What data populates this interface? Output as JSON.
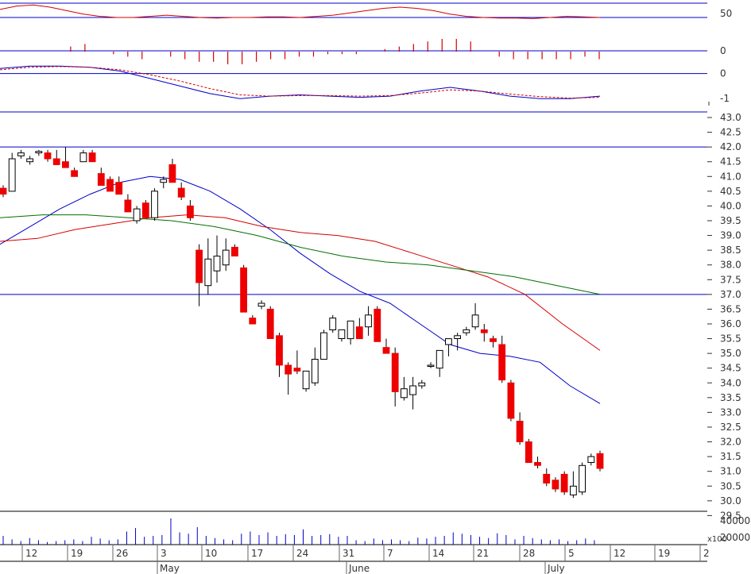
{
  "chart_data": [
    {
      "type": "line",
      "panel": "oscillator-top",
      "y_tick_labels": [
        "50",
        "0"
      ],
      "ylim": [
        0,
        75
      ],
      "reference_lines": [
        75,
        50
      ],
      "series": [
        {
          "color": "#d40000",
          "values": [
            64,
            70,
            72,
            68,
            62,
            56,
            52,
            50,
            50,
            52,
            54,
            52,
            50,
            49,
            50,
            50,
            51,
            51,
            50,
            52,
            54,
            58,
            62,
            66,
            68,
            66,
            62,
            56,
            52,
            50,
            49,
            49,
            48,
            50,
            52,
            51,
            50
          ]
        }
      ]
    },
    {
      "type": "bar",
      "panel": "histogram",
      "y_tick_labels": [
        "0"
      ],
      "ylim": [
        -8,
        8
      ],
      "color": "#d40000",
      "values": [
        0,
        0,
        0,
        0,
        2,
        3,
        0,
        -1,
        -2,
        -3,
        0,
        -2,
        -3,
        -4,
        -4,
        -5,
        -5,
        -4,
        -3,
        -3,
        -2,
        -2,
        -1,
        -1,
        -1,
        0,
        1,
        2,
        3,
        4,
        5,
        5,
        4,
        0,
        -2,
        -3,
        -3,
        -3,
        -3,
        -3,
        -2,
        -3
      ]
    },
    {
      "type": "line",
      "panel": "macd",
      "y_tick_labels": [
        "0",
        "-1"
      ],
      "ylim": [
        -1.5,
        0.4
      ],
      "reference_lines": [
        0
      ],
      "series": [
        {
          "name": "macd",
          "color": "#0000c8",
          "values": [
            0.2,
            0.3,
            0.3,
            0.25,
            0.1,
            -0.2,
            -0.5,
            -0.8,
            -1.0,
            -0.9,
            -0.85,
            -0.9,
            -0.95,
            -0.9,
            -0.7,
            -0.55,
            -0.7,
            -0.9,
            -1.0,
            -1.0,
            -0.9
          ]
        },
        {
          "name": "signal",
          "color": "#d40000",
          "dashed": true,
          "values": [
            0.15,
            0.25,
            0.28,
            0.25,
            0.15,
            -0.05,
            -0.3,
            -0.6,
            -0.85,
            -0.9,
            -0.88,
            -0.88,
            -0.9,
            -0.88,
            -0.78,
            -0.65,
            -0.7,
            -0.82,
            -0.92,
            -0.98,
            -0.95
          ]
        }
      ]
    },
    {
      "type": "candlestick",
      "panel": "price",
      "x_tick_labels": [
        "12",
        "19",
        "26",
        "3",
        "10",
        "17",
        "24",
        "31",
        "7",
        "14",
        "21",
        "28",
        "5",
        "12",
        "19",
        "2"
      ],
      "month_labels": [
        "May",
        "June",
        "July"
      ],
      "y_tick_labels": [
        "43.0",
        "42.5",
        "42.0",
        "41.5",
        "41.0",
        "40.5",
        "40.0",
        "39.5",
        "39.0",
        "38.5",
        "38.0",
        "37.5",
        "37.0",
        "36.5",
        "36.0",
        "35.5",
        "35.0",
        "34.5",
        "34.0",
        "33.5",
        "33.0",
        "32.5",
        "32.0",
        "31.5",
        "31.0",
        "30.5",
        "30.0",
        "29.5"
      ],
      "ylim": [
        29.0,
        43.0
      ],
      "reference_lines": [
        42.0,
        37.0
      ],
      "candles": [
        [
          40.6,
          40.7,
          40.3,
          40.4
        ],
        [
          40.5,
          41.8,
          40.5,
          41.6
        ],
        [
          41.7,
          41.9,
          41.6,
          41.8
        ],
        [
          41.5,
          41.7,
          41.4,
          41.6
        ],
        [
          41.8,
          41.9,
          41.7,
          41.85
        ],
        [
          41.8,
          41.9,
          41.5,
          41.6
        ],
        [
          41.6,
          41.9,
          41.5,
          41.4
        ],
        [
          41.5,
          42.0,
          41.3,
          41.3
        ],
        [
          41.2,
          41.3,
          41.0,
          41.0
        ],
        [
          41.5,
          41.9,
          41.5,
          41.8
        ],
        [
          41.8,
          41.9,
          41.5,
          41.5
        ],
        [
          41.1,
          41.3,
          40.7,
          40.7
        ],
        [
          40.9,
          41.0,
          40.5,
          40.5
        ],
        [
          40.8,
          41.0,
          40.5,
          40.4
        ],
        [
          40.2,
          40.4,
          39.8,
          39.8
        ],
        [
          39.5,
          40.0,
          39.4,
          39.9
        ],
        [
          40.1,
          40.2,
          39.6,
          39.6
        ],
        [
          39.6,
          40.6,
          39.5,
          40.5
        ],
        [
          40.8,
          41.0,
          40.6,
          40.9
        ],
        [
          41.4,
          41.6,
          40.8,
          40.8
        ],
        [
          40.6,
          40.8,
          40.2,
          40.3
        ],
        [
          40.0,
          40.2,
          39.5,
          39.6
        ],
        [
          38.5,
          38.7,
          36.6,
          37.4
        ],
        [
          37.3,
          38.9,
          37.0,
          38.2
        ],
        [
          37.8,
          39.0,
          37.4,
          38.3
        ],
        [
          38.0,
          38.9,
          37.8,
          38.5
        ],
        [
          38.6,
          38.7,
          38.3,
          38.3
        ],
        [
          37.9,
          38.0,
          36.5,
          36.4
        ],
        [
          36.2,
          36.3,
          36.0,
          36.0
        ],
        [
          36.6,
          36.8,
          36.5,
          36.7
        ],
        [
          36.5,
          36.6,
          35.5,
          35.5
        ],
        [
          35.6,
          35.7,
          34.2,
          34.6
        ],
        [
          34.6,
          34.7,
          33.6,
          34.3
        ],
        [
          34.5,
          35.1,
          34.3,
          34.4
        ],
        [
          33.8,
          34.3,
          33.7,
          34.4
        ],
        [
          34.0,
          35.2,
          33.9,
          34.8
        ],
        [
          34.8,
          35.8,
          34.8,
          35.7
        ],
        [
          35.8,
          36.3,
          35.7,
          36.2
        ],
        [
          35.5,
          35.8,
          35.4,
          35.8
        ],
        [
          35.5,
          36.1,
          35.3,
          36.1
        ],
        [
          35.9,
          36.2,
          35.5,
          35.5
        ],
        [
          35.9,
          36.6,
          35.6,
          36.3
        ],
        [
          36.5,
          36.6,
          35.5,
          35.4
        ],
        [
          35.2,
          35.5,
          35.1,
          35.0
        ],
        [
          35.0,
          35.2,
          33.2,
          33.7
        ],
        [
          33.5,
          34.2,
          33.4,
          33.8
        ],
        [
          33.6,
          34.2,
          33.1,
          33.9
        ],
        [
          33.9,
          34.1,
          33.8,
          34.0
        ],
        [
          34.6,
          34.7,
          34.5,
          34.6
        ],
        [
          34.5,
          35.1,
          34.2,
          35.1
        ],
        [
          35.3,
          35.5,
          34.9,
          35.5
        ],
        [
          35.5,
          35.7,
          35.1,
          35.6
        ],
        [
          35.7,
          35.9,
          35.6,
          35.8
        ],
        [
          35.9,
          36.7,
          35.8,
          36.3
        ],
        [
          35.8,
          36.0,
          35.4,
          35.7
        ],
        [
          35.5,
          35.6,
          35.2,
          35.4
        ],
        [
          35.3,
          35.6,
          34.0,
          34.1
        ],
        [
          34.0,
          34.1,
          32.7,
          32.8
        ],
        [
          32.7,
          33.0,
          31.9,
          32.0
        ],
        [
          32.0,
          32.1,
          31.3,
          31.3
        ],
        [
          31.3,
          31.5,
          31.1,
          31.2
        ],
        [
          30.9,
          31.1,
          30.5,
          30.6
        ],
        [
          30.7,
          30.8,
          30.3,
          30.4
        ],
        [
          30.9,
          31.0,
          30.2,
          30.3
        ],
        [
          30.2,
          31.0,
          30.1,
          30.5
        ],
        [
          30.3,
          31.3,
          30.2,
          31.2
        ],
        [
          31.3,
          31.6,
          31.2,
          31.5
        ],
        [
          31.6,
          31.7,
          31.0,
          31.1
        ]
      ],
      "moving_averages": [
        {
          "color": "#0000c8",
          "values": [
            38.7,
            39.3,
            39.9,
            40.4,
            40.8,
            41.0,
            40.9,
            40.5,
            39.9,
            39.2,
            38.4,
            37.7,
            37.1,
            36.7,
            36.0,
            35.3,
            35.0,
            34.9,
            34.7,
            33.9,
            33.3
          ]
        },
        {
          "color": "#d40000",
          "values": [
            38.8,
            38.9,
            39.2,
            39.4,
            39.6,
            39.7,
            39.6,
            39.3,
            39.1,
            39.0,
            38.8,
            38.4,
            38.0,
            37.6,
            37.0,
            36.0,
            35.1
          ]
        },
        {
          "color": "#007000",
          "values": [
            39.6,
            39.7,
            39.7,
            39.6,
            39.5,
            39.3,
            39.0,
            38.6,
            38.3,
            38.1,
            38.0,
            37.8,
            37.6,
            37.3,
            37.0
          ]
        }
      ]
    },
    {
      "type": "bar",
      "panel": "volume",
      "y_tick_labels": [
        "40000",
        "20000"
      ],
      "unit_label": "x100",
      "ylim": [
        0,
        80000
      ],
      "color": "#0000c8",
      "values": [
        20,
        12,
        8,
        15,
        10,
        6,
        8,
        10,
        12,
        8,
        18,
        14,
        10,
        12,
        30,
        38,
        18,
        20,
        22,
        60,
        28,
        25,
        40,
        20,
        15,
        12,
        10,
        25,
        30,
        22,
        28,
        20,
        24,
        22,
        35,
        20,
        22,
        24,
        18,
        20,
        10,
        8,
        14,
        10,
        12,
        10,
        8,
        16,
        14,
        18,
        20,
        28,
        25,
        22,
        18,
        15,
        26,
        22,
        12,
        20,
        15,
        12,
        10,
        12,
        8,
        10,
        14,
        10
      ]
    }
  ]
}
